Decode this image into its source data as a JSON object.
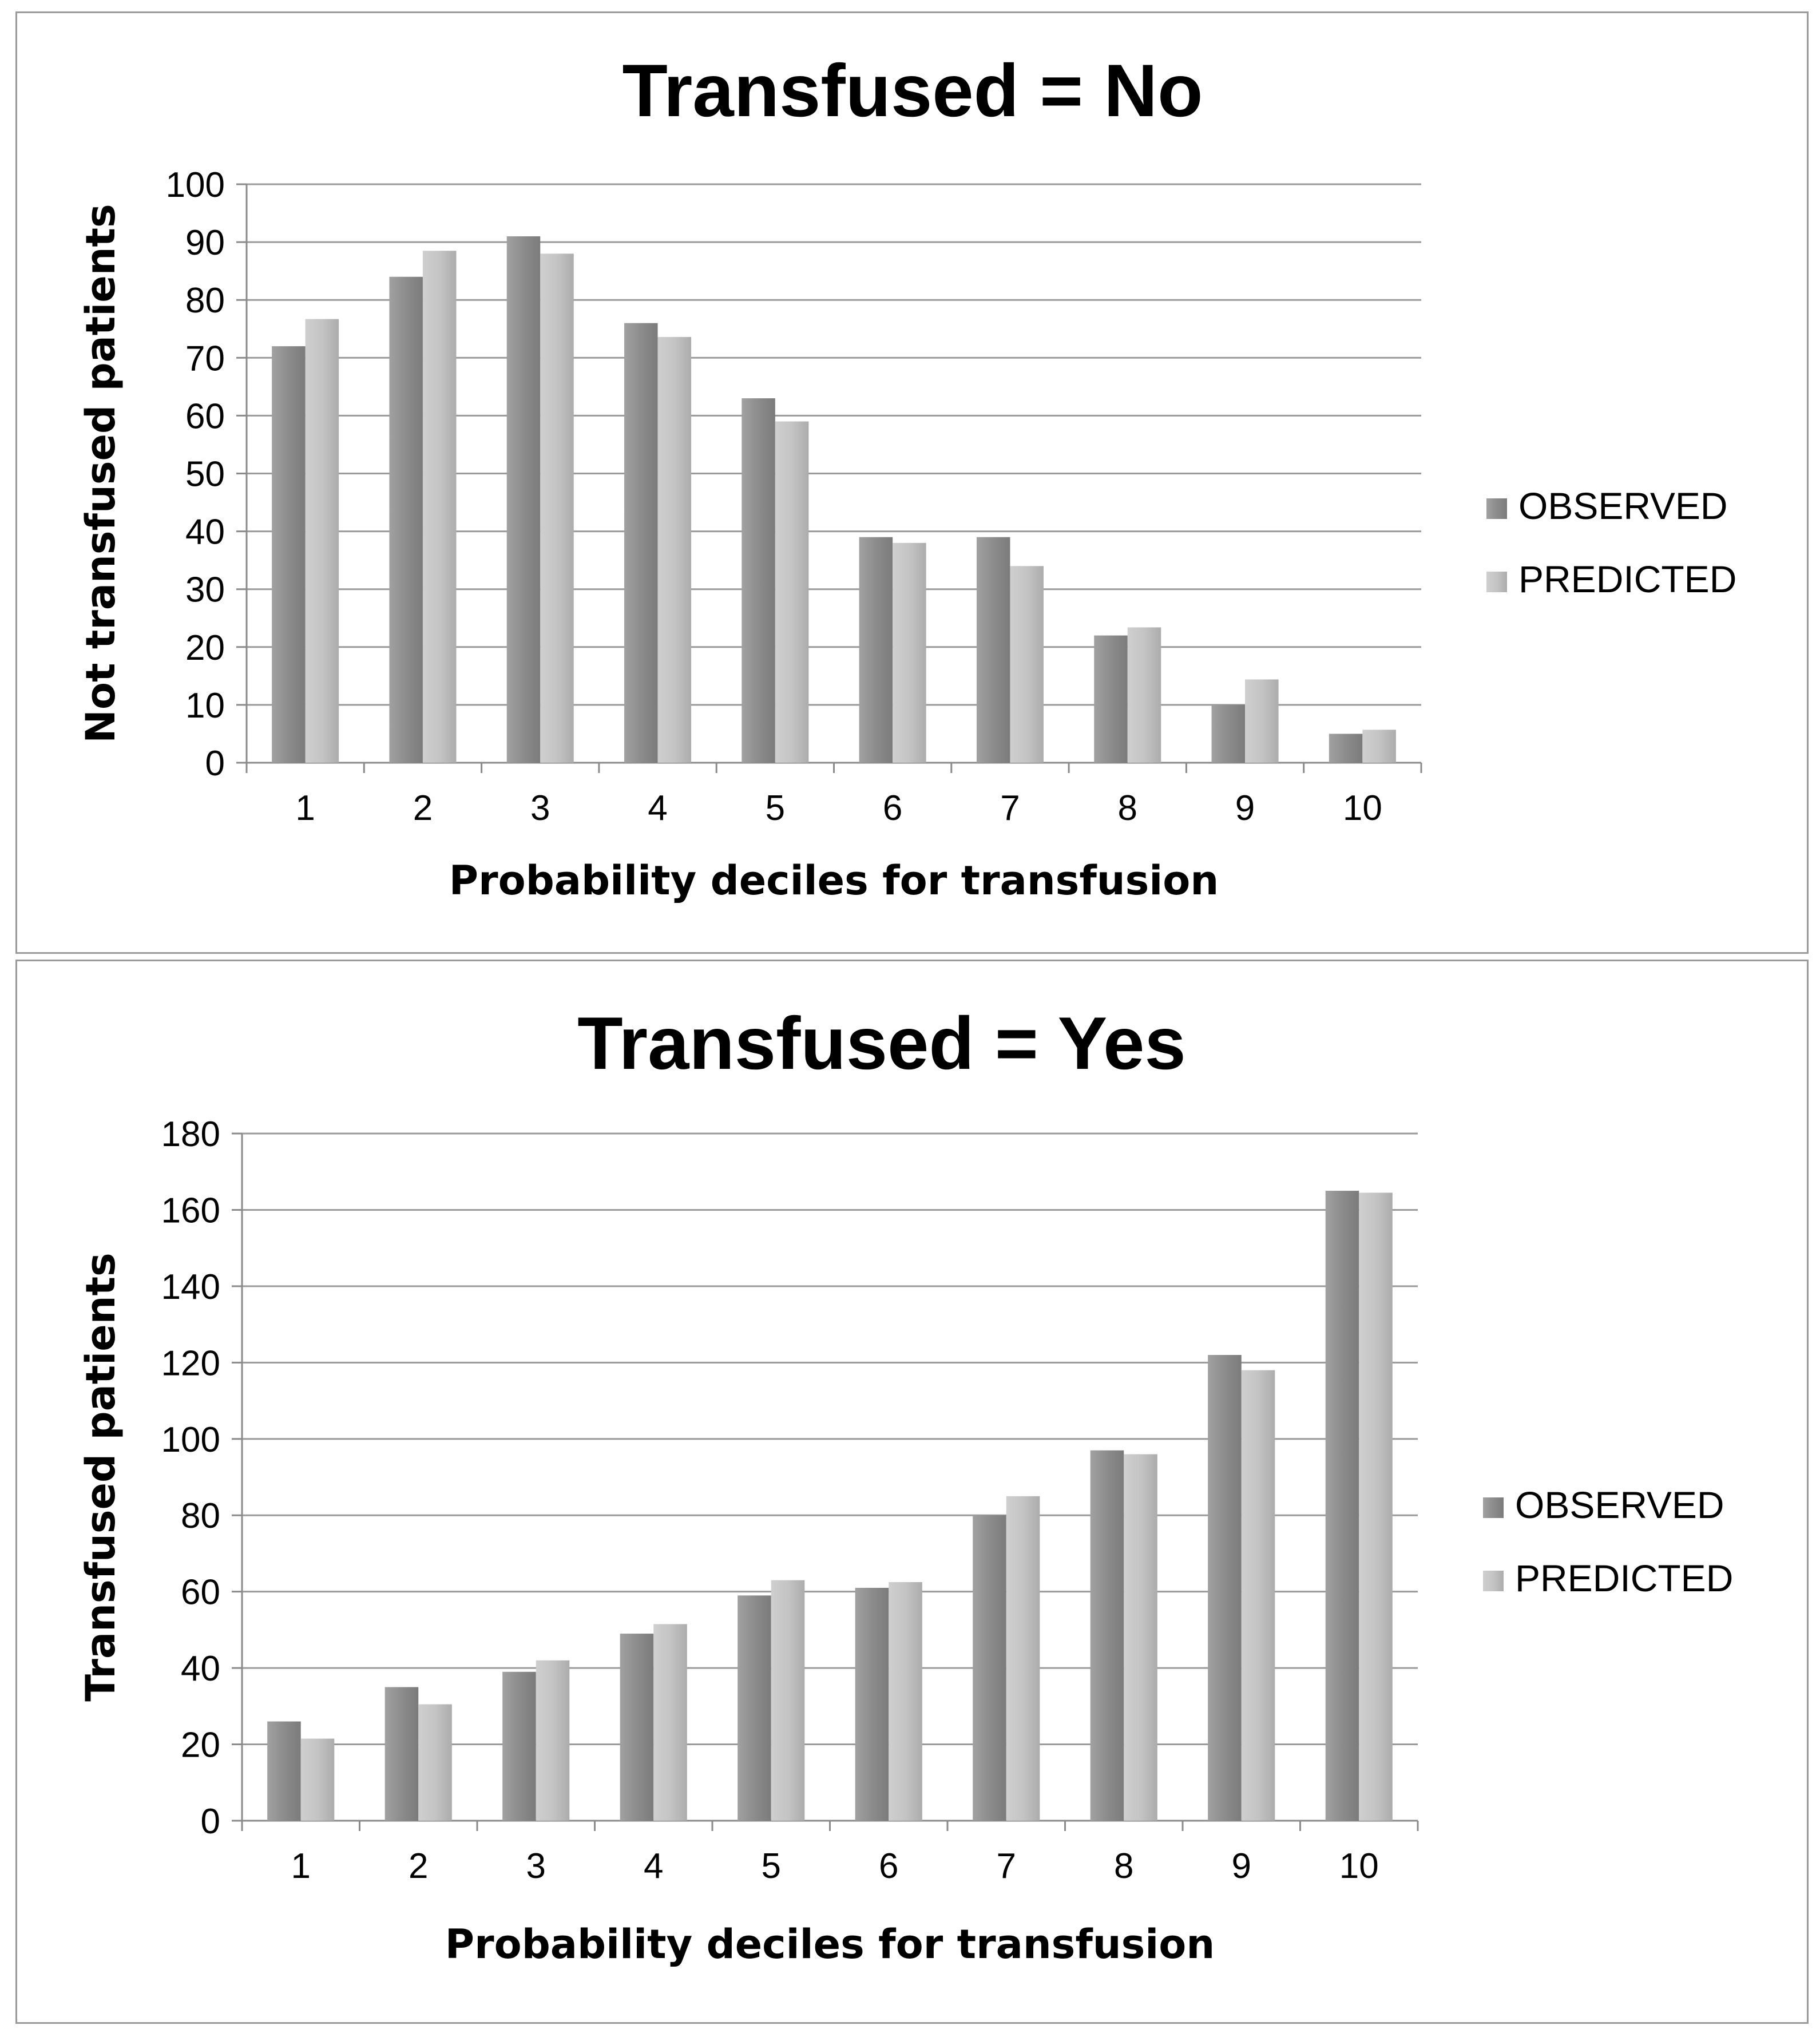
{
  "chart_data": [
    {
      "type": "bar",
      "title": "Transfused = No",
      "xlabel": "Probability deciles for transfusion",
      "ylabel": "Not transfused patients",
      "categories": [
        "1",
        "2",
        "3",
        "4",
        "5",
        "6",
        "7",
        "8",
        "9",
        "10"
      ],
      "ylim": [
        0,
        100
      ],
      "yticks": [
        0,
        10,
        20,
        30,
        40,
        50,
        60,
        70,
        80,
        90,
        100
      ],
      "grid": true,
      "legend_position": "right",
      "series": [
        {
          "name": "OBSERVED",
          "color": "#8c8c8c",
          "values": [
            72,
            84,
            91,
            76,
            63,
            39,
            39,
            22,
            10,
            5
          ]
        },
        {
          "name": "PREDICTED",
          "color": "#c4c4c4",
          "values": [
            76.7,
            88.5,
            88,
            73.6,
            59,
            38,
            34,
            23.4,
            14.4,
            5.7
          ]
        }
      ]
    },
    {
      "type": "bar",
      "title": "Transfused = Yes",
      "xlabel": "Probability deciles for transfusion",
      "ylabel": "Transfused patients",
      "categories": [
        "1",
        "2",
        "3",
        "4",
        "5",
        "6",
        "7",
        "8",
        "9",
        "10"
      ],
      "ylim": [
        0,
        180
      ],
      "yticks": [
        0,
        20,
        40,
        60,
        80,
        100,
        120,
        140,
        160,
        180
      ],
      "grid": true,
      "legend_position": "right",
      "series": [
        {
          "name": "OBSERVED",
          "color": "#8c8c8c",
          "values": [
            26,
            35,
            39,
            49,
            59,
            61,
            80,
            97,
            122,
            165
          ]
        },
        {
          "name": "PREDICTED",
          "color": "#c4c4c4",
          "values": [
            21.5,
            30.5,
            42,
            51.5,
            63,
            62.5,
            85,
            96,
            118,
            164.5
          ]
        }
      ]
    }
  ]
}
